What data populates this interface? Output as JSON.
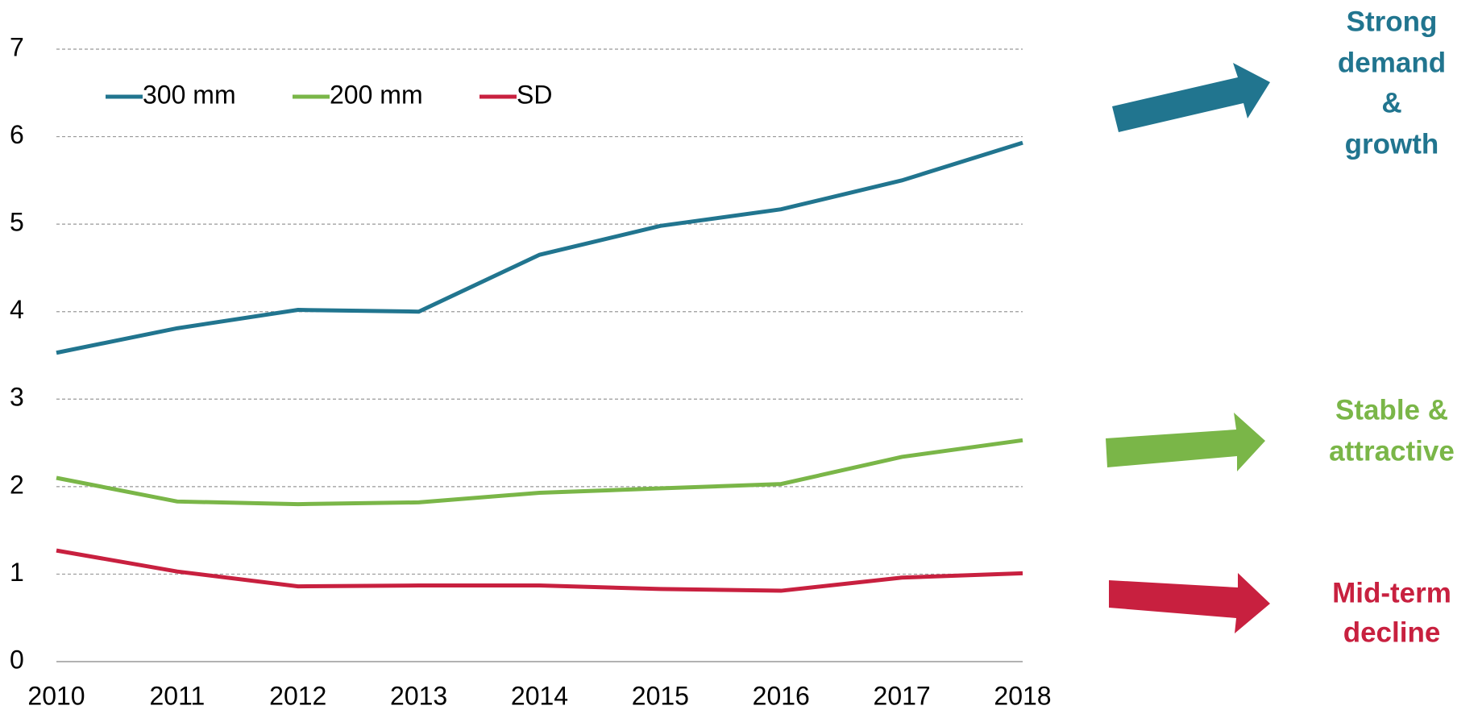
{
  "chart_data": {
    "type": "line",
    "categories": [
      "2010",
      "2011",
      "2012",
      "2013",
      "2014",
      "2015",
      "2016",
      "2017",
      "2018"
    ],
    "series": [
      {
        "name": "300 mm",
        "color": "#21758f",
        "values": [
          3.53,
          3.81,
          4.02,
          4.0,
          4.65,
          4.98,
          5.17,
          5.5,
          5.93
        ]
      },
      {
        "name": "200 mm",
        "color": "#7ab648",
        "values": [
          2.1,
          1.83,
          1.8,
          1.82,
          1.93,
          1.98,
          2.03,
          2.34,
          2.53
        ]
      },
      {
        "name": "SD",
        "color": "#c8203f",
        "values": [
          1.27,
          1.03,
          0.86,
          0.87,
          0.87,
          0.83,
          0.81,
          0.96,
          1.01
        ]
      }
    ],
    "ylim": [
      0,
      7
    ],
    "yticks": [
      0,
      1,
      2,
      3,
      4,
      5,
      6,
      7
    ],
    "grid": true,
    "legend": "top-left",
    "annotations": [
      {
        "lines": [
          "Strong",
          "demand",
          "&",
          "growth"
        ],
        "color": "#21758f"
      },
      {
        "lines": [
          "Stable &",
          "attractive"
        ],
        "color": "#7ab648"
      },
      {
        "lines": [
          "Mid-term",
          "decline"
        ],
        "color": "#c8203f"
      }
    ]
  }
}
